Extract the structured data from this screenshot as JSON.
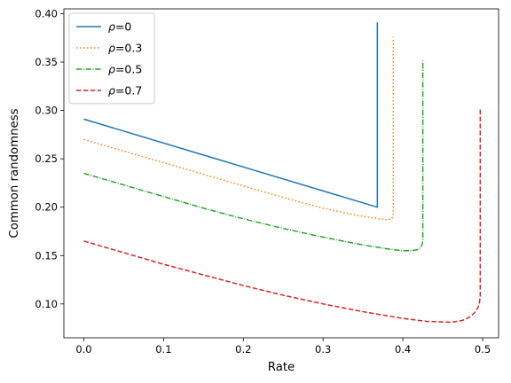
{
  "chart_data": {
    "type": "line",
    "title": "",
    "xlabel": "Rate",
    "ylabel": "Common randomness",
    "xlim": [
      -0.025,
      0.52
    ],
    "ylim": [
      0.065,
      0.405
    ],
    "xticks": [
      0.0,
      0.1,
      0.2,
      0.3,
      0.4,
      0.5
    ],
    "xtick_labels": [
      "0.0",
      "0.1",
      "0.2",
      "0.3",
      "0.4",
      "0.5"
    ],
    "yticks": [
      0.1,
      0.15,
      0.2,
      0.25,
      0.3,
      0.35,
      0.4
    ],
    "ytick_labels": [
      "0.10",
      "0.15",
      "0.20",
      "0.25",
      "0.30",
      "0.35",
      "0.40"
    ],
    "grid": false,
    "legend": "top-left",
    "series": [
      {
        "name": "ρ=0",
        "legend_symbol": "ρ",
        "legend_value": "=0",
        "color": "#1f77b4",
        "style": "solid",
        "x": [
          0.0,
          0.368,
          0.368
        ],
        "y": [
          0.291,
          0.2,
          0.391
        ]
      },
      {
        "name": "ρ=0.3",
        "legend_symbol": "ρ",
        "legend_value": "=0.3",
        "color": "#ff7f0e",
        "style": "dotted",
        "x": [
          0.0,
          0.05,
          0.1,
          0.15,
          0.2,
          0.25,
          0.3,
          0.34,
          0.37,
          0.38,
          0.386,
          0.388,
          0.388
        ],
        "y": [
          0.27,
          0.258,
          0.246,
          0.234,
          0.222,
          0.21,
          0.199,
          0.192,
          0.188,
          0.187,
          0.188,
          0.191,
          0.376
        ]
      },
      {
        "name": "ρ=0.5",
        "legend_symbol": "ρ",
        "legend_value": "=0.5",
        "color": "#2ca02c",
        "style": "dashdot",
        "x": [
          0.0,
          0.05,
          0.1,
          0.15,
          0.2,
          0.25,
          0.3,
          0.35,
          0.38,
          0.4,
          0.41,
          0.418,
          0.422,
          0.424,
          0.425,
          0.425
        ],
        "y": [
          0.235,
          0.223,
          0.211,
          0.199,
          0.188,
          0.178,
          0.169,
          0.161,
          0.157,
          0.155,
          0.155,
          0.156,
          0.158,
          0.161,
          0.165,
          0.352
        ]
      },
      {
        "name": "ρ=0.7",
        "legend_symbol": "ρ",
        "legend_value": "=0.7",
        "color": "#d62728",
        "style": "dashed",
        "x": [
          0.0,
          0.05,
          0.1,
          0.15,
          0.2,
          0.25,
          0.3,
          0.35,
          0.4,
          0.43,
          0.46,
          0.475,
          0.485,
          0.49,
          0.494,
          0.496,
          0.497,
          0.497
        ],
        "y": [
          0.165,
          0.153,
          0.141,
          0.13,
          0.119,
          0.109,
          0.1,
          0.092,
          0.085,
          0.082,
          0.081,
          0.083,
          0.087,
          0.091,
          0.096,
          0.101,
          0.108,
          0.301
        ]
      }
    ]
  }
}
